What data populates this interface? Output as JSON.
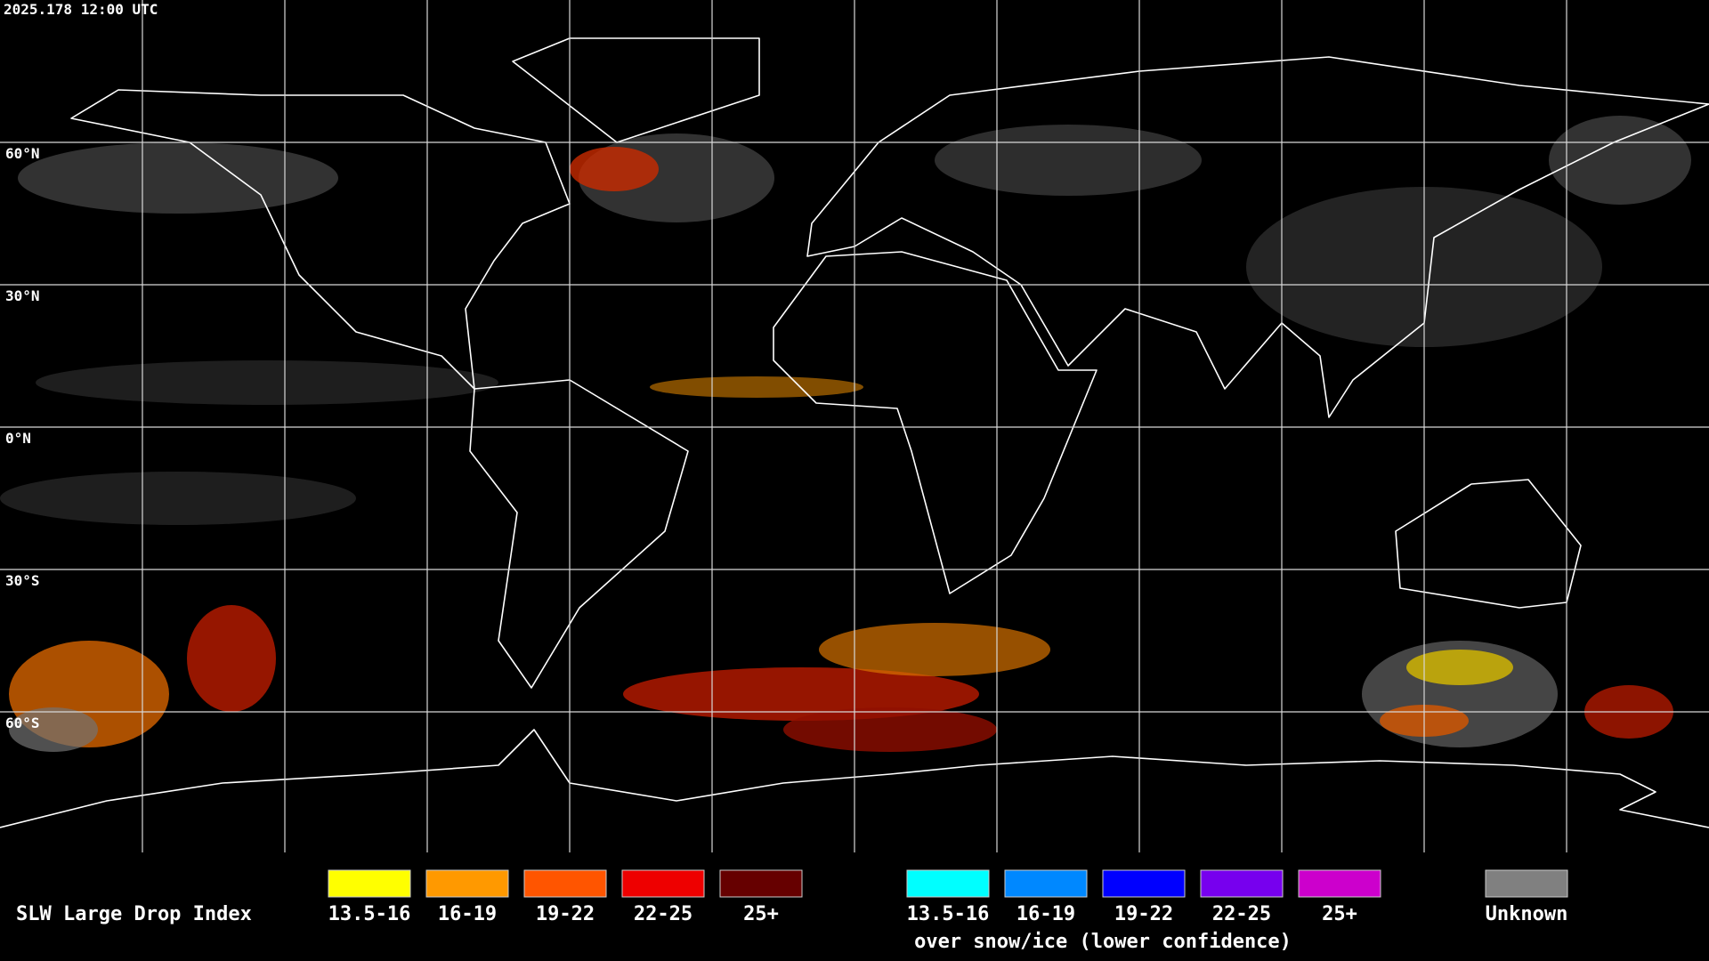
{
  "header": {
    "timestamp": "2025.178 12:00 UTC"
  },
  "map": {
    "latitude_labels": [
      "60°N",
      "30°N",
      "0°N",
      "30°S",
      "60°S"
    ]
  },
  "legend": {
    "title": "SLW Large Drop Index",
    "liquid": [
      {
        "label": "13.5-16",
        "color": "#ffff00"
      },
      {
        "label": "16-19",
        "color": "#ff9900"
      },
      {
        "label": "19-22",
        "color": "#ff5500"
      },
      {
        "label": "22-25",
        "color": "#ee0000"
      },
      {
        "label": "25+",
        "color": "#660000"
      }
    ],
    "snow_ice": [
      {
        "label": "13.5-16",
        "color": "#00ffff"
      },
      {
        "label": "16-19",
        "color": "#0088ff"
      },
      {
        "label": "19-22",
        "color": "#0000ff"
      },
      {
        "label": "22-25",
        "color": "#7700ee"
      },
      {
        "label": "25+",
        "color": "#cc00cc"
      }
    ],
    "snow_ice_note": "over snow/ice (lower confidence)",
    "unknown": {
      "label": "Unknown",
      "color": "#808080"
    }
  }
}
